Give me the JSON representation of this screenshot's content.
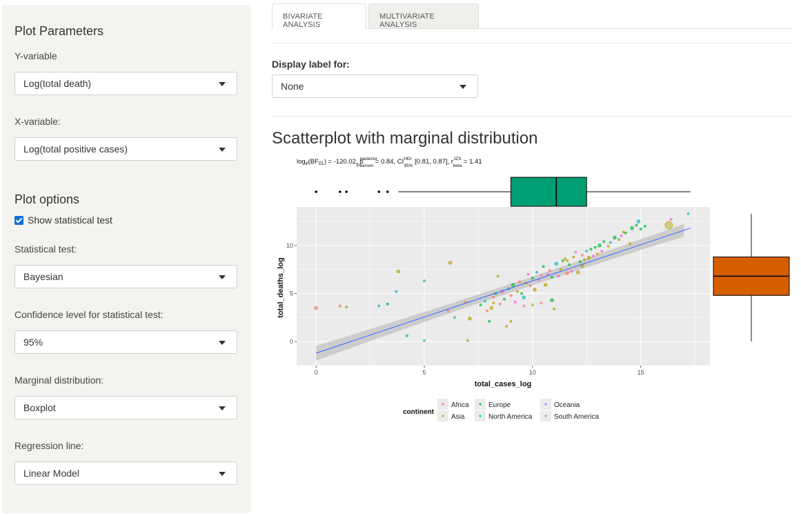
{
  "sidebar": {
    "plot_parameters_heading": "Plot Parameters",
    "y_label": "Y-variable",
    "y_value": "Log(total death)",
    "x_label": "X-variable:",
    "x_value": "Log(total positive cases)",
    "plot_options_heading": "Plot options",
    "show_test_label": "Show statistical test",
    "show_test_checked": true,
    "test_label": "Statistical test:",
    "test_value": "Bayesian",
    "conf_label": "Confidence level for statistical test:",
    "conf_value": "95%",
    "marginal_label": "Marginal distribution:",
    "marginal_value": "Boxplot",
    "regression_label": "Regression line:",
    "regression_value": "Linear Model"
  },
  "tabs": [
    {
      "label": "BIVARIATE ANALYSIS",
      "active": true
    },
    {
      "label": "MULTIVARIATE ANALYSIS",
      "active": false
    }
  ],
  "main": {
    "display_label": "Display label for:",
    "display_value": "None",
    "plot_title": "Scatterplot with marginal distribution"
  },
  "chart_data": {
    "type": "scatter",
    "subtitle": "logₑ(BF₀₁) = -120.02, ρ̂ posterior Pearson = 0.84, CI HDI 95% [0.81, 0.87], r JZS beta = 1.41",
    "xlabel": "total_cases_log",
    "ylabel": "total_deaths_log",
    "xlim": [
      -0.9,
      18.2
    ],
    "ylim": [
      -2.5,
      14
    ],
    "xticks": [
      0,
      5,
      10,
      15
    ],
    "yticks": [
      0,
      5,
      10
    ],
    "grid": true,
    "legend": {
      "title": "continent",
      "placement": "bottom",
      "entries": [
        {
          "name": "Africa",
          "color": "#f8766d"
        },
        {
          "name": "Asia",
          "color": "#b79f00"
        },
        {
          "name": "Europe",
          "color": "#00ba38"
        },
        {
          "name": "North America",
          "color": "#00bfc4"
        },
        {
          "name": "Oceania",
          "color": "#619cff"
        },
        {
          "name": "South America",
          "color": "#f564e3"
        }
      ]
    },
    "regression": {
      "x": [
        0,
        17.3
      ],
      "y": [
        -1.2,
        11.8
      ],
      "band": 0.45,
      "color": "#3366ff"
    },
    "marginal_x_box": {
      "whisker_low": 3.8,
      "q1": 9.0,
      "median": 11.1,
      "q3": 12.5,
      "whisker_high": 17.3,
      "outliers": [
        0,
        1.1,
        1.4,
        2.9,
        3.3
      ],
      "color": "#009e73"
    },
    "marginal_y_box": {
      "whisker_low": 0,
      "q1": 4.8,
      "median": 6.8,
      "q3": 8.8,
      "whisker_high": 13.3,
      "color": "#d55e00"
    },
    "points": [
      [
        0,
        3.5,
        0
      ],
      [
        1.1,
        3.7,
        0
      ],
      [
        1.4,
        3.6,
        1
      ],
      [
        2.9,
        3.7,
        3
      ],
      [
        3.3,
        3.9,
        2
      ],
      [
        3.8,
        7.3,
        1
      ],
      [
        3.7,
        5.2,
        3
      ],
      [
        4.2,
        0.6,
        2
      ],
      [
        5.0,
        6.3,
        3
      ],
      [
        5.0,
        0.1,
        3
      ],
      [
        6.2,
        8.2,
        1
      ],
      [
        6.9,
        4.1,
        0
      ],
      [
        7.0,
        0.1,
        1
      ],
      [
        6.1,
        3.2,
        0
      ],
      [
        6.4,
        2.5,
        3
      ],
      [
        7.1,
        2.4,
        1
      ],
      [
        7.6,
        3.8,
        2
      ],
      [
        7.8,
        4.2,
        3
      ],
      [
        7.9,
        3.2,
        0
      ],
      [
        8.0,
        2.1,
        2
      ],
      [
        8.1,
        3.5,
        1
      ],
      [
        8.2,
        4.6,
        0
      ],
      [
        8.3,
        5.0,
        2
      ],
      [
        8.4,
        6.8,
        1
      ],
      [
        8.5,
        3.9,
        0
      ],
      [
        8.6,
        5.2,
        5
      ],
      [
        8.7,
        4.4,
        2
      ],
      [
        8.8,
        1.6,
        1
      ],
      [
        8.9,
        5.5,
        3
      ],
      [
        9.0,
        4.8,
        0
      ],
      [
        9.1,
        5.9,
        2
      ],
      [
        9.2,
        4.1,
        5
      ],
      [
        9.3,
        5.2,
        1
      ],
      [
        9.4,
        6.2,
        0
      ],
      [
        9.5,
        5.0,
        2
      ],
      [
        9.6,
        4.6,
        3
      ],
      [
        9.7,
        6.1,
        1
      ],
      [
        9.8,
        7.0,
        5
      ],
      [
        9.9,
        5.8,
        0
      ],
      [
        10.0,
        6.6,
        2
      ],
      [
        10.1,
        5.4,
        1
      ],
      [
        10.2,
        7.2,
        3
      ],
      [
        10.3,
        6.4,
        5
      ],
      [
        10.4,
        6.9,
        0
      ],
      [
        10.5,
        7.8,
        2
      ],
      [
        10.6,
        5.9,
        1
      ],
      [
        10.7,
        7.0,
        5
      ],
      [
        10.8,
        7.4,
        0
      ],
      [
        10.9,
        6.7,
        2
      ],
      [
        11.0,
        3.4,
        1
      ],
      [
        11.1,
        8.1,
        3
      ],
      [
        11.2,
        6.8,
        5
      ],
      [
        11.3,
        7.5,
        1
      ],
      [
        11.4,
        8.4,
        2
      ],
      [
        11.5,
        8.6,
        1
      ],
      [
        11.6,
        7.1,
        0
      ],
      [
        11.7,
        8.0,
        2
      ],
      [
        11.8,
        7.3,
        5
      ],
      [
        11.9,
        8.8,
        1
      ],
      [
        12.0,
        9.3,
        5
      ],
      [
        12.1,
        7.2,
        1
      ],
      [
        12.2,
        8.3,
        2
      ],
      [
        12.3,
        9.0,
        0
      ],
      [
        12.4,
        8.5,
        1
      ],
      [
        12.5,
        9.4,
        3
      ],
      [
        12.6,
        8.7,
        1
      ],
      [
        12.7,
        9.6,
        2
      ],
      [
        12.8,
        8.9,
        5
      ],
      [
        12.9,
        9.8,
        2
      ],
      [
        13.0,
        9.1,
        1
      ],
      [
        13.1,
        10.0,
        2
      ],
      [
        13.2,
        9.4,
        5
      ],
      [
        13.3,
        10.4,
        2
      ],
      [
        13.5,
        9.9,
        1
      ],
      [
        13.6,
        10.3,
        3
      ],
      [
        13.8,
        10.8,
        2
      ],
      [
        14.0,
        10.6,
        1
      ],
      [
        14.1,
        11.0,
        5
      ],
      [
        14.3,
        11.3,
        2
      ],
      [
        14.5,
        10.2,
        1
      ],
      [
        14.6,
        11.8,
        2
      ],
      [
        14.8,
        12.1,
        2
      ],
      [
        15.0,
        11.7,
        2
      ],
      [
        15.2,
        12.0,
        2
      ],
      [
        14.2,
        11.4,
        1
      ],
      [
        14.9,
        12.5,
        3
      ],
      [
        16.3,
        12.1,
        1
      ],
      [
        16.4,
        12.7,
        5
      ],
      [
        17.2,
        13.3,
        3
      ],
      [
        11.6,
        8.4,
        1
      ],
      [
        12.3,
        7.9,
        1
      ],
      [
        9.0,
        2.1,
        1
      ],
      [
        9.6,
        3.7,
        0
      ],
      [
        10.0,
        3.8,
        1
      ],
      [
        10.4,
        4.0,
        0
      ],
      [
        10.9,
        4.3,
        2
      ],
      [
        8.2,
        4.0,
        1
      ]
    ]
  }
}
